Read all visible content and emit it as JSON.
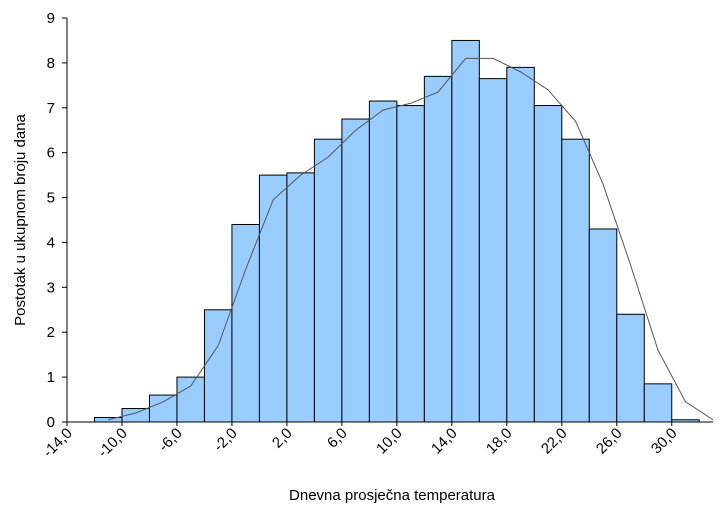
{
  "chart_data": {
    "type": "histogram",
    "xlabel": "Dnevna prosječna temperatura",
    "ylabel": "Postotak u ukupnom broju dana",
    "bins": [
      -12,
      -10,
      -8,
      -6,
      -4,
      -2,
      0,
      2,
      4,
      6,
      8,
      10,
      12,
      14,
      16,
      18,
      20,
      22,
      24,
      26,
      28,
      30,
      32
    ],
    "values": [
      0.1,
      0.3,
      0.6,
      1.0,
      2.5,
      4.4,
      5.5,
      5.55,
      6.3,
      6.75,
      7.15,
      7.05,
      7.7,
      8.5,
      7.65,
      7.9,
      7.05,
      6.3,
      4.3,
      2.4,
      0.85,
      0.05
    ],
    "color": "#99ccff",
    "line": {
      "color": "#555555",
      "x": [
        -11,
        -9,
        -7,
        -5,
        -3,
        -1,
        1,
        3,
        5,
        7,
        9,
        11,
        13,
        15,
        17,
        19,
        21,
        23,
        25,
        27,
        29,
        31,
        33
      ],
      "values": [
        0.05,
        0.2,
        0.45,
        0.8,
        1.7,
        3.4,
        4.95,
        5.5,
        5.9,
        6.5,
        6.95,
        7.1,
        7.35,
        8.1,
        8.1,
        7.8,
        7.4,
        6.7,
        5.3,
        3.5,
        1.6,
        0.45,
        0.05
      ]
    },
    "xlim": [
      -14,
      33
    ],
    "xticks": [
      {
        "value": -14,
        "label": "-14,0"
      },
      {
        "value": -10,
        "label": "-10,0"
      },
      {
        "value": -6,
        "label": "-6,0"
      },
      {
        "value": -2,
        "label": "-2,0"
      },
      {
        "value": 2,
        "label": "2,0"
      },
      {
        "value": 6,
        "label": "6,0"
      },
      {
        "value": 10,
        "label": "10,0"
      },
      {
        "value": 14,
        "label": "14,0"
      },
      {
        "value": 18,
        "label": "18,0"
      },
      {
        "value": 22,
        "label": "22,0"
      },
      {
        "value": 26,
        "label": "26,0"
      },
      {
        "value": 30,
        "label": "30,0"
      }
    ],
    "ylim": [
      0,
      9
    ],
    "yticks": [
      0,
      1,
      2,
      3,
      4,
      5,
      6,
      7,
      8,
      9
    ]
  }
}
